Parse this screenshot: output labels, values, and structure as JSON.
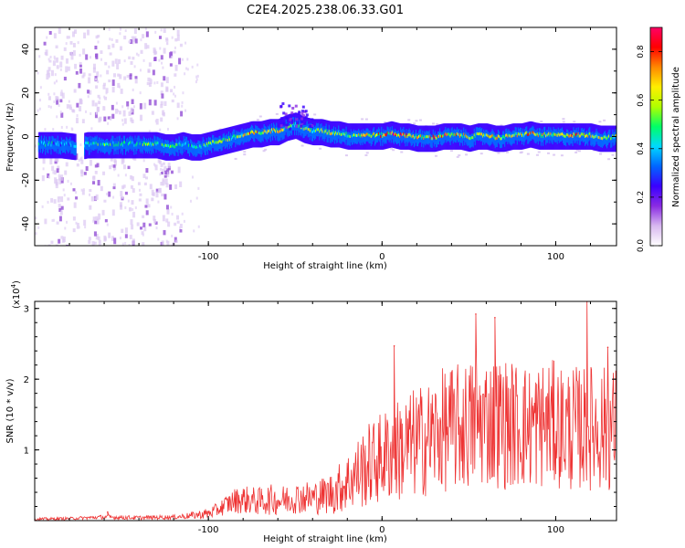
{
  "title": "C2E4.2025.238.06.33.G01",
  "chart_data": [
    {
      "type": "heatmap",
      "title": "C2E4.2025.238.06.33.G01",
      "xlabel": "Height of straight line (km)",
      "ylabel": "Frequency (Hz)",
      "xlim": [
        -200,
        135
      ],
      "ylim": [
        -50,
        50
      ],
      "xticks": [
        -100,
        0,
        100
      ],
      "yticks": [
        -40,
        -20,
        0,
        20,
        40
      ],
      "colorbar": {
        "label": "Normalized spectral amplitude",
        "range": [
          0.0,
          0.9
        ],
        "ticks": [
          "0.0",
          "0.2",
          "0.4",
          "0.6",
          "0.8"
        ],
        "colors": [
          "#ffffff",
          "#d8b8f0",
          "#8a2be2",
          "#3a00ff",
          "#0066ff",
          "#00d8ff",
          "#00ff66",
          "#b0ff00",
          "#ffee00",
          "#ff8800",
          "#ff0000",
          "#ff0066"
        ]
      },
      "trace": {
        "x": [
          -196,
          -185,
          -175,
          -170,
          -165,
          -160,
          -155,
          -150,
          -145,
          -140,
          -135,
          -130,
          -125,
          -120,
          -115,
          -110,
          -105,
          -100,
          -95,
          -90,
          -85,
          -80,
          -75,
          -70,
          -65,
          -60,
          -55,
          -50,
          -45,
          -40,
          -35,
          -30,
          -25,
          -20,
          -15,
          -10,
          -5,
          0,
          5,
          10,
          15,
          20,
          25,
          30,
          35,
          40,
          45,
          50,
          55,
          60,
          65,
          70,
          75,
          80,
          85,
          90,
          95,
          100,
          105,
          110,
          115,
          120,
          125,
          130,
          134
        ],
        "y": [
          -4,
          -4,
          -5,
          -4,
          -4,
          -4,
          -4,
          -4,
          -4,
          -4,
          -4,
          -4,
          -5,
          -5,
          -4,
          -5,
          -5,
          -4,
          -3,
          -2,
          -1,
          0,
          1,
          1,
          2,
          2,
          4,
          5,
          3,
          2,
          2,
          1,
          1,
          0,
          0,
          0,
          0,
          0,
          1,
          0,
          0,
          -1,
          -1,
          -1,
          0,
          0,
          0,
          -1,
          0,
          0,
          -1,
          -1,
          0,
          0,
          1,
          0,
          0,
          0,
          0,
          0,
          0,
          0,
          -1,
          -1,
          -1
        ],
        "amplitude": [
          0.45,
          0.42,
          0.4,
          0.5,
          0.5,
          0.55,
          0.5,
          0.5,
          0.45,
          0.5,
          0.55,
          0.5,
          0.5,
          0.6,
          0.55,
          0.5,
          0.5,
          0.55,
          0.6,
          0.6,
          0.65,
          0.7,
          0.75,
          0.75,
          0.7,
          0.7,
          0.65,
          0.7,
          0.65,
          0.6,
          0.6,
          0.65,
          0.6,
          0.6,
          0.65,
          0.7,
          0.75,
          0.8,
          0.85,
          0.8,
          0.75,
          0.7,
          0.75,
          0.8,
          0.8,
          0.75,
          0.7,
          0.7,
          0.65,
          0.7,
          0.7,
          0.7,
          0.7,
          0.75,
          0.8,
          0.7,
          0.75,
          0.7,
          0.7,
          0.75,
          0.7,
          0.7,
          0.65,
          0.6,
          0.6
        ]
      },
      "noise_columns_x": [
        -190,
        -180,
        -170,
        -160,
        -150,
        -140,
        -130,
        -122
      ]
    },
    {
      "type": "line",
      "xlabel": "Height of straight line (km)",
      "ylabel": "SNR (10 * v/v)",
      "multiplier": "(x10",
      "multiplier_exp": "4",
      "multiplier_end": ")",
      "xlim": [
        -200,
        135
      ],
      "ylim": [
        0,
        3.1
      ],
      "xticks": [
        -100,
        0,
        100
      ],
      "yticks": [
        1,
        2,
        3
      ],
      "color": "#ee3333",
      "envelope": {
        "x": [
          -200,
          -180,
          -160,
          -140,
          -120,
          -110,
          -100,
          -95,
          -90,
          -85,
          -80,
          -75,
          -70,
          -65,
          -60,
          -55,
          -50,
          -45,
          -40,
          -35,
          -30,
          -25,
          -20,
          -15,
          -10,
          -5,
          0,
          5,
          10,
          15,
          20,
          25,
          30,
          35,
          40,
          45,
          50,
          55,
          60,
          65,
          70,
          75,
          80,
          85,
          90,
          95,
          100,
          105,
          110,
          115,
          120,
          125,
          130,
          135
        ],
        "mean": [
          0.02,
          0.03,
          0.05,
          0.04,
          0.05,
          0.07,
          0.1,
          0.15,
          0.22,
          0.28,
          0.3,
          0.28,
          0.27,
          0.3,
          0.28,
          0.3,
          0.32,
          0.33,
          0.32,
          0.35,
          0.38,
          0.45,
          0.55,
          0.65,
          0.75,
          0.82,
          0.9,
          0.95,
          1.0,
          1.05,
          1.1,
          1.15,
          1.2,
          1.28,
          1.3,
          1.32,
          1.35,
          1.38,
          1.42,
          1.4,
          1.38,
          1.36,
          1.35,
          1.32,
          1.35,
          1.38,
          1.36,
          1.32,
          1.3,
          1.3,
          1.32,
          1.3,
          1.3,
          1.3
        ],
        "spread": [
          0.02,
          0.02,
          0.03,
          0.03,
          0.03,
          0.05,
          0.08,
          0.1,
          0.14,
          0.18,
          0.2,
          0.2,
          0.2,
          0.22,
          0.2,
          0.22,
          0.22,
          0.24,
          0.24,
          0.26,
          0.3,
          0.36,
          0.42,
          0.5,
          0.58,
          0.62,
          0.66,
          0.7,
          0.75,
          0.78,
          0.8,
          0.82,
          0.85,
          0.88,
          0.9,
          0.92,
          0.95,
          0.95,
          0.95,
          0.95,
          0.95,
          0.92,
          0.92,
          0.9,
          0.92,
          0.92,
          0.9,
          0.9,
          0.9,
          0.88,
          0.9,
          0.9,
          0.9,
          0.9
        ]
      },
      "peaks": [
        {
          "x": -158,
          "y": 0.12
        },
        {
          "x": 7,
          "y": 2.47
        },
        {
          "x": 54,
          "y": 2.92
        },
        {
          "x": 65,
          "y": 2.87
        },
        {
          "x": 118,
          "y": 3.1
        },
        {
          "x": 130,
          "y": 2.45
        }
      ]
    }
  ]
}
